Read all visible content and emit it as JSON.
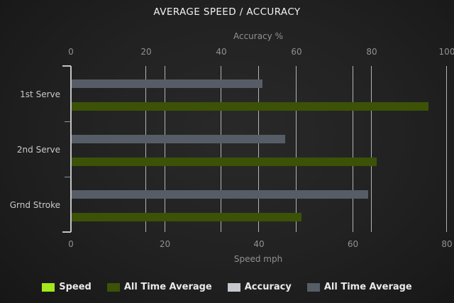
{
  "title": "AVERAGE SPEED / ACCURACY",
  "chart_data": {
    "type": "bar",
    "orientation": "horizontal",
    "grid": true,
    "categories": [
      "1st Serve",
      "2nd Serve",
      "Grnd Stroke"
    ],
    "series": [
      {
        "name": "Speed",
        "axis": "bottom",
        "color": "#a4e71c",
        "values": [
          0,
          0,
          0
        ]
      },
      {
        "name": "All Time Average",
        "axis": "bottom",
        "color": "#3c5207",
        "values": [
          76,
          65,
          49
        ]
      },
      {
        "name": "Accuracy",
        "axis": "top",
        "color": "#c5c9cd",
        "values": [
          0,
          0,
          0
        ]
      },
      {
        "name": "All Time Average",
        "axis": "top",
        "color": "#565d66",
        "values": [
          51,
          57,
          79
        ]
      }
    ],
    "axes": {
      "top": {
        "label": "Accuracy %",
        "ticks": [
          0,
          20,
          40,
          60,
          80,
          100
        ],
        "range": [
          0,
          100
        ]
      },
      "bottom": {
        "label": "Speed mph",
        "ticks": [
          0,
          20,
          40,
          60,
          80
        ],
        "range": [
          0,
          80
        ]
      }
    },
    "legend_position": "bottom"
  }
}
